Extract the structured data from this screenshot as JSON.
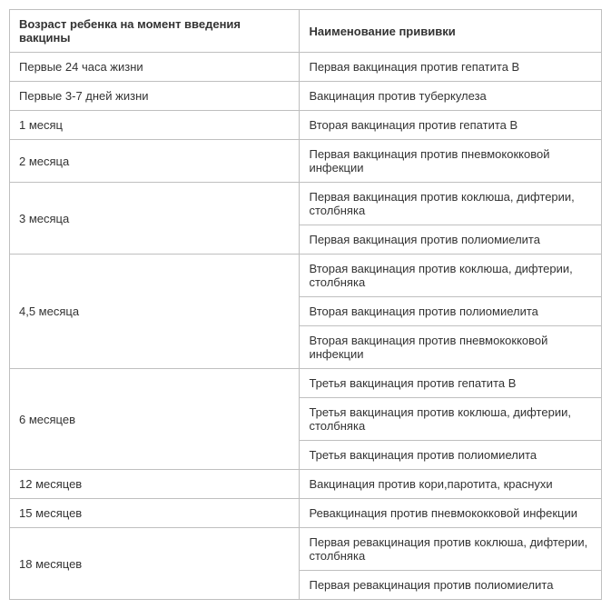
{
  "table": {
    "headers": {
      "age": "Возраст ребенка на момент введения вакцины",
      "vaccine": "Наименование прививки"
    },
    "groups": [
      {
        "age": "Первые 24 часа жизни",
        "vaccines": [
          "Первая вакцинация против гепатита В"
        ]
      },
      {
        "age": "Первые 3-7 дней жизни",
        "vaccines": [
          "Вакцинация против туберкулеза"
        ]
      },
      {
        "age": "1 месяц",
        "vaccines": [
          "Вторая вакцинация против гепатита В"
        ]
      },
      {
        "age": "2 месяца",
        "vaccines": [
          "Первая вакцинация против пневмококковой инфекции"
        ]
      },
      {
        "age": "3 месяца",
        "vaccines": [
          "Первая вакцинация против коклюша, дифтерии, столбняка",
          "Первая вакцинация против полиомиелита"
        ]
      },
      {
        "age": "4,5 месяца",
        "vaccines": [
          "Вторая вакцинация против коклюша, дифтерии, столбняка",
          "Вторая вакцинация против полиомиелита",
          "Вторая вакцинация против пневмококковой инфекции"
        ]
      },
      {
        "age": "6 месяцев",
        "vaccines": [
          "Третья вакцинация против гепатита В",
          "Третья вакцинация против коклюша, дифтерии, столбняка",
          "Третья вакцинация против полиомиелита"
        ]
      },
      {
        "age": "12 месяцев",
        "vaccines": [
          "Вакцинация против кори,паротита, краснухи"
        ]
      },
      {
        "age": "15 месяцев",
        "vaccines": [
          "Ревакцинация против пневмококковой инфекции"
        ]
      },
      {
        "age": "18 месяцев",
        "vaccines": [
          "Первая ревакцинация против коклюша, дифтерии, столбняка",
          "Первая ревакцинация против полиомиелита"
        ]
      }
    ]
  }
}
